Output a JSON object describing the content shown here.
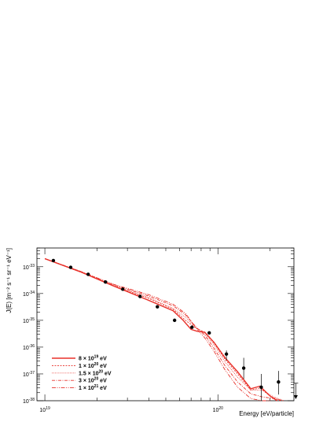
{
  "chart_data": {
    "type": "line",
    "xlabel": "Energy  [eV/particle]",
    "ylabel": "J(E)  [m⁻² s⁻¹ sr⁻¹ eV⁻¹]",
    "xscale": "log",
    "yscale": "log",
    "xlim": [
      9e+18,
      2.75e+20
    ],
    "ylim": [
      1e-38,
      5e-33
    ],
    "x_tick_labels": [
      {
        "value": 1e+19,
        "base": "10",
        "exp": "19"
      },
      {
        "value": 1e+20,
        "base": "10",
        "exp": "20"
      }
    ],
    "y_tick_labels": [
      {
        "value": 1e-33,
        "base": "10",
        "exp": "-33"
      },
      {
        "value": 1e-34,
        "base": "10",
        "exp": "-34"
      },
      {
        "value": 1e-35,
        "base": "10",
        "exp": "-35"
      },
      {
        "value": 1e-36,
        "base": "10",
        "exp": "-36"
      },
      {
        "value": 1e-37,
        "base": "10",
        "exp": "-37"
      },
      {
        "value": 1e-38,
        "base": "10",
        "exp": "-38"
      }
    ],
    "legend_position": "bottom-left",
    "grid": false,
    "color": "#e8312a",
    "series": [
      {
        "name": "8 × 10¹⁹ eV",
        "label_main": "8 × 10",
        "label_exp": "19",
        "label_unit": " eV",
        "dash": "solid",
        "x": [
          1e+19,
          1.6e+19,
          2.5e+19,
          4e+19,
          5.5e+19,
          6.3e+19,
          7e+19,
          7.6e+19,
          8.4e+19,
          9.5e+19,
          1.1e+20,
          1.3e+20,
          1.55e+20,
          1.75e+20,
          2e+20,
          2.2e+20
        ],
        "y": [
          2e-33,
          6.5e-34,
          1.9e-34,
          5.5e-35,
          2.3e-35,
          1e-35,
          4.6e-36,
          3.9e-36,
          3.6e-36,
          1.5e-36,
          4e-37,
          1.2e-37,
          2.8e-38,
          3.5e-38,
          1.5e-38,
          1e-38
        ]
      },
      {
        "name": "1 × 10²⁰ eV",
        "label_main": "1 × 10",
        "label_exp": "20",
        "label_unit": " eV",
        "dash": "2,1.5",
        "x": [
          1e+19,
          1.6e+19,
          2.5e+19,
          4e+19,
          5.5e+19,
          6.5e+19,
          7.5e+19,
          8.4e+19,
          9.5e+19,
          1.1e+20,
          1.3e+20,
          1.55e+20,
          1.75e+20,
          2e+20,
          2.3e+20
        ],
        "y": [
          2e-33,
          6.5e-34,
          1.9e-34,
          6.5e-35,
          2.6e-35,
          1e-35,
          5e-36,
          3.6e-36,
          1.4e-36,
          3.5e-37,
          1e-37,
          2.5e-38,
          3e-38,
          1.5e-38,
          1e-38
        ]
      },
      {
        "name": "1.5 × 10²⁰ eV",
        "label_main": "1.5 × 10",
        "label_exp": "20",
        "label_unit": " eV",
        "dash": "0.8,1.3",
        "x": [
          1e+19,
          1.6e+19,
          2.5e+19,
          4e+19,
          5.5e+19,
          6.5e+19,
          7.5e+19,
          8.4e+19,
          9.5e+19,
          1.1e+20,
          1.3e+20,
          1.55e+20,
          1.8e+20,
          2.1e+20,
          2.4e+20
        ],
        "y": [
          2e-33,
          6.5e-34,
          2e-34,
          7e-35,
          2.8e-35,
          1.3e-35,
          5.2e-36,
          3.2e-36,
          1.2e-36,
          2.8e-37,
          7.5e-38,
          2.5e-38,
          2.5e-38,
          1.4e-38,
          1e-38
        ]
      },
      {
        "name": "3 × 10²⁰ eV",
        "label_main": "3 × 10",
        "label_exp": "20",
        "label_unit": " eV",
        "dash": "4,1.5,1,1.5",
        "x": [
          1e+19,
          1.6e+19,
          2.5e+19,
          4e+19,
          5.5e+19,
          6.5e+19,
          7.5e+19,
          8.4e+19,
          9.5e+19,
          1.1e+20,
          1.3e+20,
          1.55e+20,
          1.8e+20,
          2.1e+20,
          2.4e+20
        ],
        "y": [
          2e-33,
          6.8e-34,
          2.1e-34,
          8e-35,
          3.5e-35,
          1.6e-35,
          5.5e-36,
          2.8e-36,
          9e-37,
          2e-37,
          5e-38,
          1.8e-38,
          1.4e-38,
          1.2e-38,
          1e-38
        ]
      },
      {
        "name": "1 × 10²¹ eV",
        "label_main": "1 × 10",
        "label_exp": "21",
        "label_unit": " eV",
        "dash": "5,1.5,1,1.5,1,1.5",
        "x": [
          1e+19,
          1.6e+19,
          2.5e+19,
          4e+19,
          5.5e+19,
          6.5e+19,
          7.5e+19,
          8.4e+19,
          9.5e+19,
          1.1e+20,
          1.3e+20,
          1.55e+20,
          1.8e+20,
          2e+20
        ],
        "y": [
          2e-33,
          6.8e-34,
          2.2e-34,
          9e-35,
          4e-35,
          1.8e-35,
          5e-36,
          2.2e-36,
          7e-37,
          1.4e-37,
          3.2e-38,
          1.2e-38,
          1e-38,
          1e-38
        ]
      }
    ],
    "data_points": [
      {
        "x": 1.12e+19,
        "y": 1.7e-33
      },
      {
        "x": 1.41e+19,
        "y": 9.5e-34
      },
      {
        "x": 1.78e+19,
        "y": 5.2e-34
      },
      {
        "x": 2.24e+19,
        "y": 2.7e-34
      },
      {
        "x": 2.82e+19,
        "y": 1.45e-34
      },
      {
        "x": 3.55e+19,
        "y": 7.8e-35
      },
      {
        "x": 4.47e+19,
        "y": 3.2e-35
      },
      {
        "x": 5.62e+19,
        "y": 1e-35
      },
      {
        "x": 7.08e+19,
        "y": 5.5e-36
      },
      {
        "x": 8.91e+19,
        "y": 3.4e-36
      },
      {
        "x": 1.12e+20,
        "y": 5.5e-37,
        "yerr_lo": 3.2e-37,
        "yerr_hi": 7.5e-37
      },
      {
        "x": 1.41e+20,
        "y": 1.65e-37,
        "yerr_lo": 6.5e-38,
        "yerr_hi": 4e-37
      },
      {
        "x": 1.78e+20,
        "y": 3.2e-38,
        "yerr_lo": 1e-38,
        "yerr_hi": 1e-37
      },
      {
        "x": 2.24e+20,
        "y": 5e-38,
        "yerr_lo": 1.7e-38,
        "yerr_hi": 1.3e-37
      },
      {
        "x": 2.82e+20,
        "y": 4.5e-38,
        "upper_limit": true
      }
    ]
  }
}
